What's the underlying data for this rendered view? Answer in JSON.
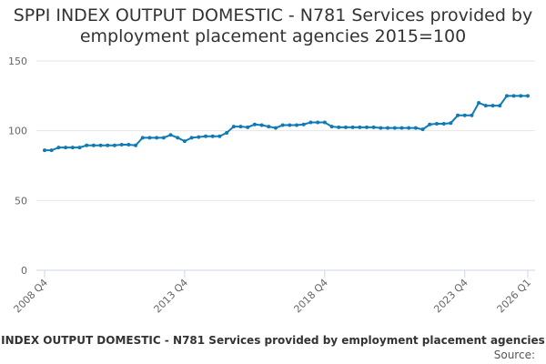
{
  "chart_data": {
    "type": "line",
    "title": "SPPI INDEX OUTPUT DOMESTIC - N781 Services provided by employment placement agencies 2015=100",
    "caption": "INDEX OUTPUT DOMESTIC - N781 Services provided by employment placement agencies",
    "source": "Source:",
    "categories": [
      "2008 Q4",
      null,
      null,
      null,
      null,
      null,
      null,
      null,
      null,
      null,
      null,
      null,
      null,
      null,
      null,
      null,
      null,
      null,
      null,
      null,
      "2013 Q4",
      null,
      null,
      null,
      null,
      null,
      null,
      null,
      null,
      null,
      null,
      null,
      null,
      null,
      null,
      null,
      null,
      null,
      null,
      null,
      "2018 Q4",
      null,
      null,
      null,
      null,
      null,
      null,
      null,
      null,
      null,
      null,
      null,
      null,
      null,
      null,
      null,
      null,
      null,
      null,
      null,
      "2023 Q4",
      null,
      null,
      null,
      null,
      null,
      null,
      null,
      null,
      "2026 Q1"
    ],
    "series": [
      {
        "name": "SPPI INDEX OUTPUT DOMESTIC - N781",
        "color": "#0f7ab5",
        "values": [
          86,
          86,
          88,
          88,
          88,
          88,
          89.5,
          89.5,
          89.5,
          89.5,
          89.5,
          90,
          90,
          89.5,
          95,
          95,
          95,
          95,
          97,
          95,
          92.5,
          95,
          95.5,
          96,
          96,
          96,
          98.5,
          103,
          103,
          102.5,
          104.5,
          104,
          103,
          102,
          104,
          104,
          104,
          104.5,
          106,
          106,
          106,
          103,
          102.5,
          102.5,
          102.5,
          102.5,
          102.5,
          102.5,
          102,
          102,
          102,
          102,
          102,
          102,
          101,
          104.5,
          105,
          105,
          105.5,
          111,
          111,
          111,
          120,
          118,
          118,
          118,
          125,
          125,
          125,
          125
        ]
      }
    ],
    "ylim": [
      0,
      150
    ],
    "yticks": [
      0,
      50,
      100,
      150
    ],
    "grid": true
  }
}
